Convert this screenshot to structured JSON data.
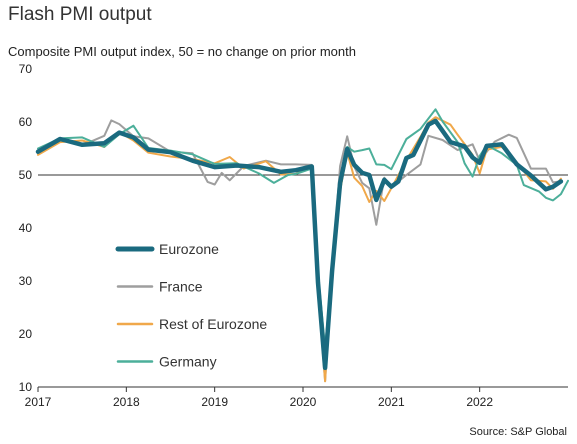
{
  "chart_data": {
    "type": "line",
    "title": "Flash PMI output",
    "subtitle": "Composite PMI output index, 50 = no change on prior month",
    "source": "Source: S&P Global",
    "ylim": [
      10,
      70
    ],
    "yticks": [
      10,
      20,
      30,
      40,
      50,
      60,
      70
    ],
    "xlim": [
      2017.0,
      2023.0
    ],
    "xticks": [
      {
        "value": 2017.0,
        "label": "2017"
      },
      {
        "value": 2018.0,
        "label": "2018"
      },
      {
        "value": 2019.0,
        "label": "2019"
      },
      {
        "value": 2020.0,
        "label": "2020"
      },
      {
        "value": 2021.0,
        "label": "2021"
      },
      {
        "value": 2022.0,
        "label": "2022"
      }
    ],
    "reference_line": 50,
    "grid": false,
    "legend_position": "lower-left",
    "series": [
      {
        "name": "Eurozone",
        "color": "#1a6a7f",
        "points": [
          [
            2017.0,
            54.4
          ],
          [
            2017.25,
            56.8
          ],
          [
            2017.5,
            55.7
          ],
          [
            2017.75,
            56.0
          ],
          [
            2017.92,
            58.0
          ],
          [
            2018.08,
            57.1
          ],
          [
            2018.25,
            54.8
          ],
          [
            2018.5,
            54.3
          ],
          [
            2018.75,
            52.7
          ],
          [
            2019.0,
            51.5
          ],
          [
            2019.25,
            51.8
          ],
          [
            2019.5,
            51.5
          ],
          [
            2019.75,
            50.6
          ],
          [
            2019.92,
            50.9
          ],
          [
            2020.1,
            51.6
          ],
          [
            2020.17,
            29.7
          ],
          [
            2020.25,
            13.6
          ],
          [
            2020.33,
            31.9
          ],
          [
            2020.42,
            48.5
          ],
          [
            2020.5,
            54.9
          ],
          [
            2020.58,
            51.9
          ],
          [
            2020.67,
            50.4
          ],
          [
            2020.75,
            50.0
          ],
          [
            2020.83,
            45.3
          ],
          [
            2020.92,
            49.1
          ],
          [
            2021.0,
            47.8
          ],
          [
            2021.08,
            48.8
          ],
          [
            2021.17,
            53.2
          ],
          [
            2021.25,
            53.8
          ],
          [
            2021.42,
            59.5
          ],
          [
            2021.5,
            60.2
          ],
          [
            2021.67,
            56.2
          ],
          [
            2021.83,
            55.4
          ],
          [
            2021.92,
            53.3
          ],
          [
            2022.0,
            52.3
          ],
          [
            2022.08,
            55.5
          ],
          [
            2022.25,
            55.8
          ],
          [
            2022.42,
            52.0
          ],
          [
            2022.58,
            49.9
          ],
          [
            2022.75,
            47.3
          ],
          [
            2022.83,
            47.8
          ],
          [
            2022.92,
            48.8
          ]
        ]
      },
      {
        "name": "France",
        "color": "#9e9e9e",
        "points": [
          [
            2017.0,
            54.0
          ],
          [
            2017.25,
            56.6
          ],
          [
            2017.5,
            55.6
          ],
          [
            2017.75,
            57.4
          ],
          [
            2017.83,
            60.3
          ],
          [
            2017.92,
            59.6
          ],
          [
            2018.08,
            57.3
          ],
          [
            2018.25,
            56.9
          ],
          [
            2018.5,
            54.4
          ],
          [
            2018.75,
            54.1
          ],
          [
            2018.92,
            48.7
          ],
          [
            2019.0,
            48.2
          ],
          [
            2019.08,
            50.4
          ],
          [
            2019.17,
            49.0
          ],
          [
            2019.33,
            51.7
          ],
          [
            2019.58,
            52.7
          ],
          [
            2019.75,
            52.0
          ],
          [
            2019.92,
            52.0
          ],
          [
            2020.1,
            51.9
          ],
          [
            2020.17,
            28.9
          ],
          [
            2020.25,
            11.1
          ],
          [
            2020.33,
            32.1
          ],
          [
            2020.42,
            51.7
          ],
          [
            2020.5,
            57.3
          ],
          [
            2020.58,
            51.6
          ],
          [
            2020.67,
            48.5
          ],
          [
            2020.75,
            47.5
          ],
          [
            2020.83,
            40.6
          ],
          [
            2020.92,
            49.5
          ],
          [
            2021.0,
            47.7
          ],
          [
            2021.17,
            50.0
          ],
          [
            2021.33,
            52.0
          ],
          [
            2021.42,
            57.4
          ],
          [
            2021.58,
            56.6
          ],
          [
            2021.75,
            54.7
          ],
          [
            2021.92,
            55.8
          ],
          [
            2022.0,
            52.7
          ],
          [
            2022.17,
            56.3
          ],
          [
            2022.33,
            57.6
          ],
          [
            2022.42,
            57.0
          ],
          [
            2022.58,
            51.2
          ],
          [
            2022.75,
            51.2
          ],
          [
            2022.83,
            48.6
          ],
          [
            2022.92,
            48.8
          ]
        ]
      },
      {
        "name": "Rest of Eurozone",
        "color": "#f0a84a",
        "points": [
          [
            2017.0,
            53.8
          ],
          [
            2017.25,
            56.2
          ],
          [
            2017.5,
            56.5
          ],
          [
            2017.75,
            55.3
          ],
          [
            2017.92,
            58.1
          ],
          [
            2018.08,
            56.5
          ],
          [
            2018.25,
            54.2
          ],
          [
            2018.5,
            53.5
          ],
          [
            2018.75,
            53.0
          ],
          [
            2019.0,
            52.2
          ],
          [
            2019.17,
            53.4
          ],
          [
            2019.33,
            51.2
          ],
          [
            2019.58,
            52.6
          ],
          [
            2019.75,
            50.1
          ],
          [
            2019.92,
            50.2
          ],
          [
            2020.1,
            51.8
          ],
          [
            2020.17,
            28.0
          ],
          [
            2020.25,
            11.1
          ],
          [
            2020.33,
            33.0
          ],
          [
            2020.42,
            47.0
          ],
          [
            2020.5,
            54.3
          ],
          [
            2020.58,
            49.5
          ],
          [
            2020.67,
            47.9
          ],
          [
            2020.75,
            44.9
          ],
          [
            2020.83,
            47.0
          ],
          [
            2020.92,
            45.1
          ],
          [
            2021.0,
            47.5
          ],
          [
            2021.17,
            52.8
          ],
          [
            2021.33,
            57.2
          ],
          [
            2021.42,
            59.9
          ],
          [
            2021.5,
            60.9
          ],
          [
            2021.67,
            59.5
          ],
          [
            2021.75,
            57.6
          ],
          [
            2021.92,
            53.8
          ],
          [
            2022.0,
            50.3
          ],
          [
            2022.08,
            54.8
          ],
          [
            2022.25,
            55.3
          ],
          [
            2022.42,
            52.4
          ],
          [
            2022.58,
            49.0
          ],
          [
            2022.75,
            48.8
          ],
          [
            2022.83,
            47.4
          ],
          [
            2022.92,
            49.3
          ]
        ]
      },
      {
        "name": "Germany",
        "color": "#4caf9a",
        "points": [
          [
            2017.0,
            55.0
          ],
          [
            2017.25,
            56.9
          ],
          [
            2017.5,
            57.1
          ],
          [
            2017.75,
            55.3
          ],
          [
            2017.92,
            57.7
          ],
          [
            2018.08,
            59.3
          ],
          [
            2018.25,
            55.1
          ],
          [
            2018.5,
            54.6
          ],
          [
            2018.75,
            53.9
          ],
          [
            2019.0,
            52.1
          ],
          [
            2019.25,
            52.2
          ],
          [
            2019.42,
            50.9
          ],
          [
            2019.5,
            50.3
          ],
          [
            2019.67,
            48.5
          ],
          [
            2019.83,
            50.0
          ],
          [
            2019.92,
            50.2
          ],
          [
            2020.1,
            51.2
          ],
          [
            2020.17,
            31.5
          ],
          [
            2020.25,
            17.4
          ],
          [
            2020.33,
            32.3
          ],
          [
            2020.42,
            47.0
          ],
          [
            2020.5,
            55.3
          ],
          [
            2020.58,
            54.4
          ],
          [
            2020.67,
            54.7
          ],
          [
            2020.75,
            55.0
          ],
          [
            2020.83,
            52.0
          ],
          [
            2020.92,
            51.9
          ],
          [
            2021.0,
            51.1
          ],
          [
            2021.17,
            56.8
          ],
          [
            2021.33,
            58.7
          ],
          [
            2021.5,
            62.4
          ],
          [
            2021.58,
            60.1
          ],
          [
            2021.75,
            56.2
          ],
          [
            2021.83,
            52.2
          ],
          [
            2021.92,
            49.7
          ],
          [
            2022.0,
            53.6
          ],
          [
            2022.08,
            55.6
          ],
          [
            2022.25,
            54.1
          ],
          [
            2022.42,
            51.9
          ],
          [
            2022.5,
            48.1
          ],
          [
            2022.67,
            46.9
          ],
          [
            2022.75,
            45.7
          ],
          [
            2022.83,
            45.2
          ],
          [
            2022.92,
            46.4
          ],
          [
            2023.0,
            48.9
          ]
        ]
      }
    ]
  }
}
